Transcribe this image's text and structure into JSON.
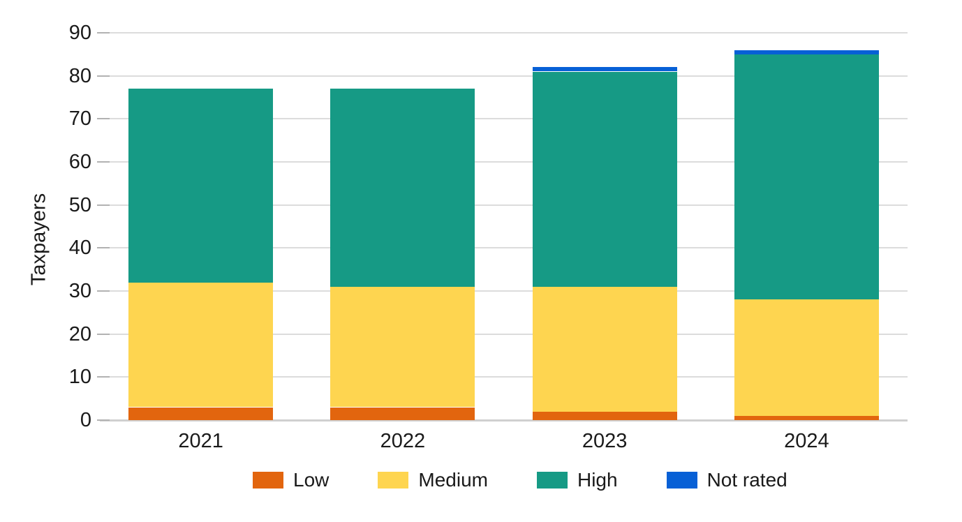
{
  "chart_data": {
    "type": "bar",
    "stacked": true,
    "title": "",
    "xlabel": "",
    "ylabel": "Taxpayers",
    "categories": [
      "2021",
      "2022",
      "2023",
      "2024"
    ],
    "series": [
      {
        "name": "Low",
        "color": "#E2650E",
        "values": [
          3,
          3,
          2,
          1
        ]
      },
      {
        "name": "Medium",
        "color": "#FED550",
        "values": [
          29,
          28,
          29,
          27
        ]
      },
      {
        "name": "High",
        "color": "#169A85",
        "values": [
          45,
          46,
          50,
          57
        ]
      },
      {
        "name": "Not rated",
        "color": "#0760D6",
        "values": [
          0,
          0,
          1,
          1
        ]
      }
    ],
    "ylim": [
      0,
      90
    ],
    "yticks": [
      0,
      10,
      20,
      30,
      40,
      50,
      60,
      70,
      80,
      90
    ],
    "grid": "horizontal",
    "legend_position": "bottom",
    "legend": [
      "Low",
      "Medium",
      "High",
      "Not rated"
    ]
  },
  "colors": {
    "background": "#FFFFFF",
    "gridline": "#DCDCDC",
    "axis_line": "#D0D0D0",
    "tick_mark": "#B2B2B2",
    "text": "#1A1A1A"
  }
}
